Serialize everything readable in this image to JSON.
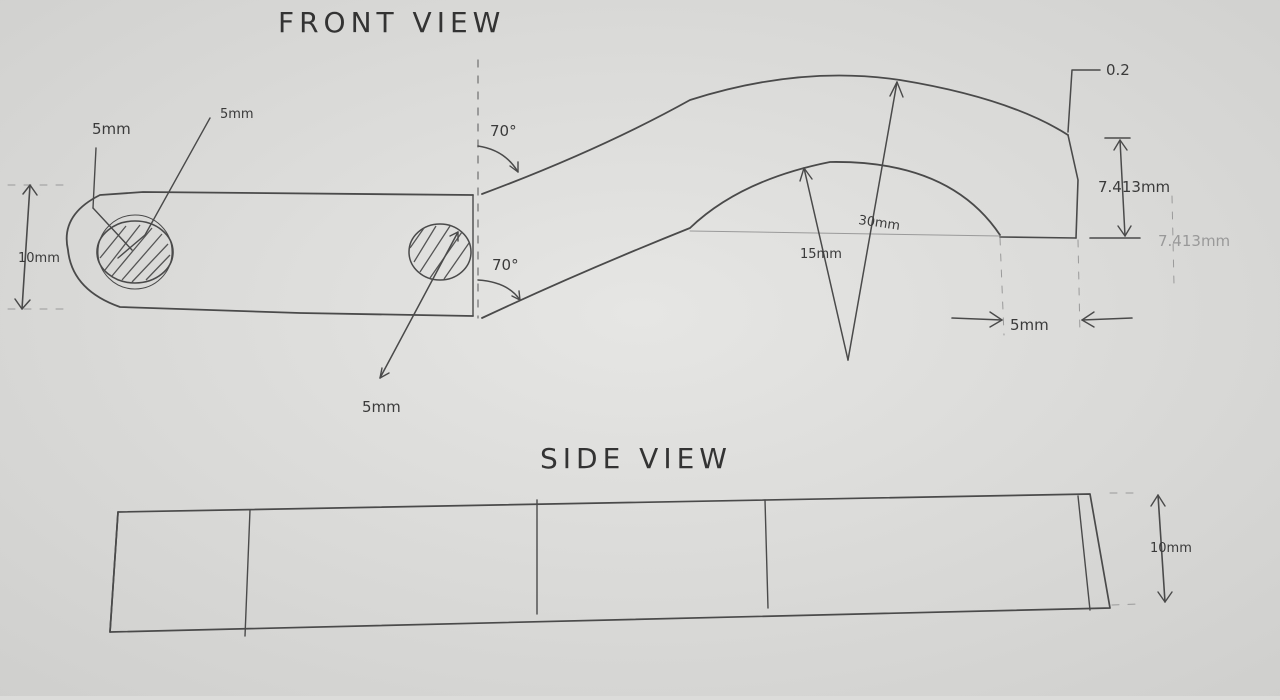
{
  "titles": {
    "front_view": "FRONT VIEW",
    "side_view": "SIDE VIEW"
  },
  "front": {
    "label_5mm_a": "5mm",
    "label_5mm_b": "5mm",
    "label_10mm": "10mm",
    "label_70_top": "70°",
    "label_70_bottom": "70°",
    "label_5mm_hole": "5mm",
    "label_30mm": "30mm",
    "label_15mm": "15mm",
    "label_0_2": "0.2",
    "label_7413_a": "7.413mm",
    "label_7413_b": "7.413mm",
    "label_5mm_foot": "5mm"
  },
  "side": {
    "label_10mm": "10mm"
  },
  "colors": {
    "paper": "#dcdcda",
    "pencil": "#4a4a4a"
  }
}
